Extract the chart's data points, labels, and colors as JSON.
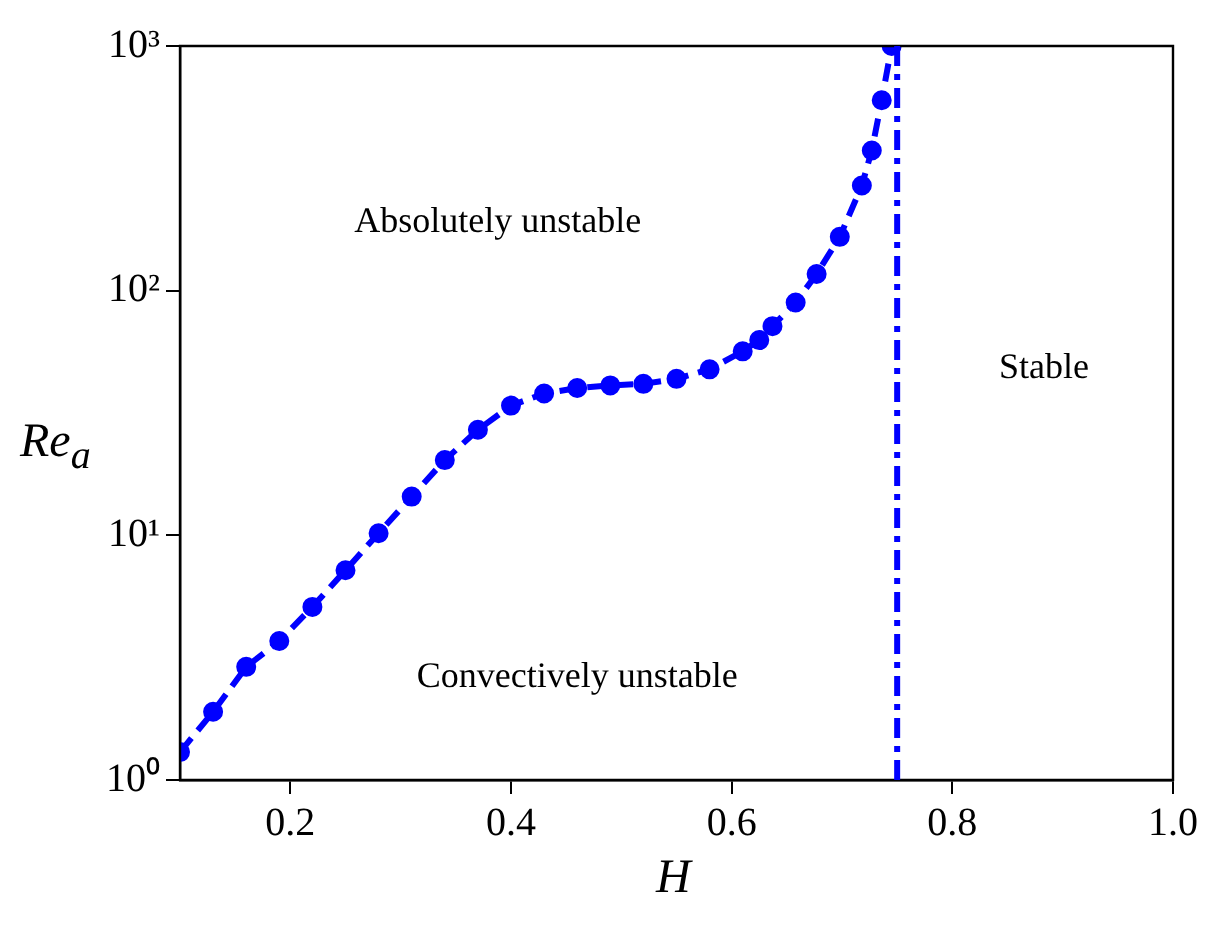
{
  "chart_data": {
    "type": "line",
    "xlabel": "H",
    "ylabel": "Re$_{a}$",
    "x": [
      0.1,
      0.13,
      0.16,
      0.19,
      0.22,
      0.25,
      0.28,
      0.31,
      0.34,
      0.37,
      0.4,
      0.43,
      0.46,
      0.49,
      0.52,
      0.55,
      0.58,
      0.61,
      0.625,
      0.637,
      0.658,
      0.677,
      0.698,
      0.718,
      0.727,
      0.736,
      0.745
    ],
    "series": [
      {
        "color": "#0000ff",
        "values": [
          1.3,
          1.9,
          2.9,
          3.7,
          5.1,
          7.2,
          10.2,
          14.4,
          20.3,
          27,
          33.9,
          38,
          40,
          41,
          41.6,
          43.6,
          47.7,
          56.5,
          62.8,
          71.6,
          89.5,
          117,
          166,
          269,
          374,
          600,
          1000
        ],
        "marker": "circle",
        "line_style": "dashed"
      }
    ],
    "xlim": [
      0.1,
      1.0
    ],
    "xticks": [
      0.2,
      0.4,
      0.6,
      0.8,
      {
        "value": 1,
        "label": "1.0"
      }
    ],
    "ylim": [
      1,
      1000
    ],
    "yticks": [
      {
        "value": 1,
        "label": "10⁰"
      },
      {
        "value": 10,
        "label": "10¹"
      },
      {
        "value": 100,
        "label": "10²"
      },
      {
        "value": 1000,
        "label": "10³"
      }
    ],
    "log": "y",
    "grid": false,
    "legend": false,
    "ref_lines": [
      {
        "axis": "x",
        "value": 0.75,
        "color": "#0000ff",
        "line_style": "dashed"
      }
    ],
    "annotations": [
      "Absolutely unstable",
      "Convectively unstable",
      "Stable"
    ]
  }
}
